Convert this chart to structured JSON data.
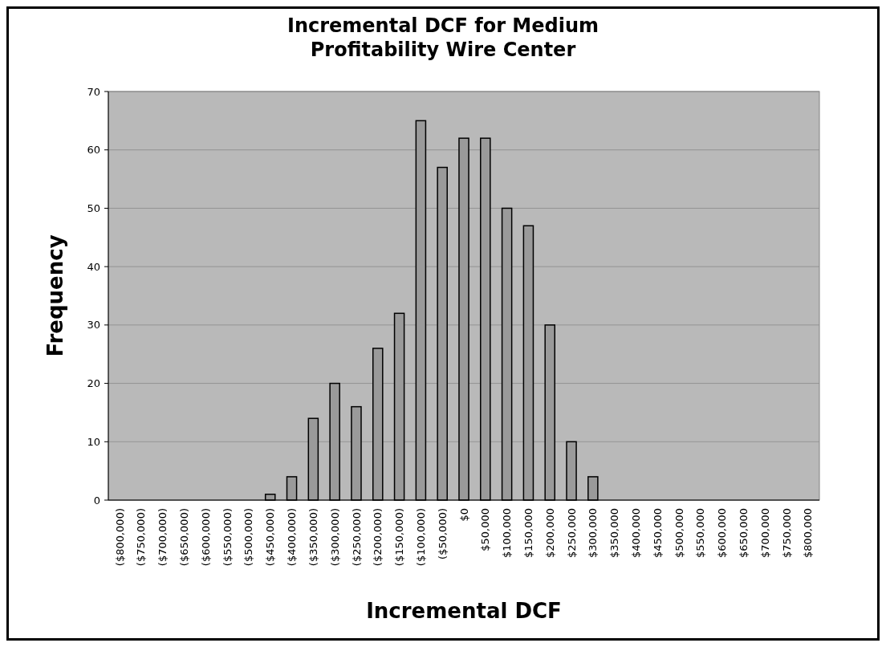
{
  "chart_data": {
    "type": "bar",
    "title": "Incremental DCF for Medium Profitability Wire Center",
    "xlabel": "Incremental DCF",
    "ylabel": "Frequency",
    "categories": [
      "($800,000)",
      "($750,000)",
      "($700,000)",
      "($650,000)",
      "($600,000)",
      "($550,000)",
      "($500,000)",
      "($450,000)",
      "($400,000)",
      "($350,000)",
      "($300,000)",
      "($250,000)",
      "($200,000)",
      "($150,000)",
      "($100,000)",
      "($50,000)",
      "$0",
      "$50,000",
      "$100,000",
      "$150,000",
      "$200,000",
      "$250,000",
      "$300,000",
      "$350,000",
      "$400,000",
      "$450,000",
      "$500,000",
      "$550,000",
      "$600,000",
      "$650,000",
      "$700,000",
      "$750,000",
      "$800,000"
    ],
    "values": [
      0,
      0,
      0,
      0,
      0,
      0,
      0,
      1,
      4,
      14,
      20,
      16,
      26,
      32,
      65,
      57,
      62,
      62,
      50,
      47,
      30,
      10,
      4,
      0,
      0,
      0,
      0,
      0,
      0,
      0,
      0,
      0,
      0
    ],
    "color": "#9a9a9a",
    "ylim": [
      0,
      70
    ],
    "yticks": [
      0,
      10,
      20,
      30,
      40,
      50,
      60,
      70
    ],
    "grid": "y"
  }
}
